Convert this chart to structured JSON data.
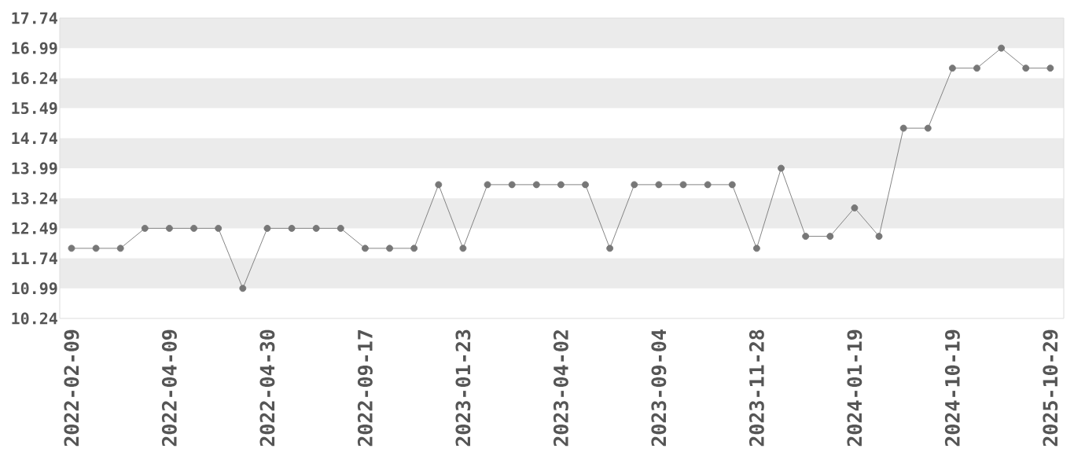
{
  "chart_data": {
    "type": "line",
    "categories": [
      "2022-02-09",
      null,
      null,
      null,
      "2022-04-09",
      null,
      null,
      null,
      "2022-04-30",
      null,
      null,
      null,
      "2022-09-17",
      null,
      null,
      null,
      "2023-01-23",
      null,
      null,
      null,
      "2023-04-02",
      null,
      null,
      null,
      "2023-09-04",
      null,
      null,
      null,
      "2023-11-28",
      null,
      null,
      null,
      "2024-01-19",
      null,
      null,
      null,
      "2024-10-19",
      null,
      null,
      null,
      "2025-10-29"
    ],
    "values": [
      11.99,
      11.99,
      11.99,
      12.49,
      12.49,
      12.49,
      12.49,
      10.99,
      12.49,
      12.49,
      12.49,
      12.49,
      11.99,
      11.99,
      11.99,
      13.58,
      11.99,
      13.58,
      13.58,
      13.58,
      13.58,
      13.58,
      11.99,
      13.58,
      13.58,
      13.58,
      13.58,
      13.58,
      11.99,
      13.99,
      12.29,
      12.29,
      13.0,
      12.29,
      14.99,
      14.99,
      16.49,
      16.49,
      16.99,
      16.49,
      16.49
    ],
    "color": "#777777",
    "ylim": [
      10.24,
      17.74
    ],
    "yticks": [
      10.24,
      10.99,
      11.74,
      12.49,
      13.24,
      13.99,
      14.74,
      15.49,
      16.24,
      16.99,
      17.74
    ],
    "bands": [
      {
        "axis": "y",
        "from": 10.99,
        "to": 11.74,
        "color": "#ebebeb"
      },
      {
        "axis": "y",
        "from": 12.49,
        "to": 13.24,
        "color": "#ebebeb"
      },
      {
        "axis": "y",
        "from": 13.99,
        "to": 14.74,
        "color": "#ebebeb"
      },
      {
        "axis": "y",
        "from": 15.49,
        "to": 16.24,
        "color": "#ebebeb"
      },
      {
        "axis": "y",
        "from": 16.99,
        "to": 17.74,
        "color": "#ebebeb"
      }
    ],
    "marker": "circle",
    "line_style": "solid"
  }
}
